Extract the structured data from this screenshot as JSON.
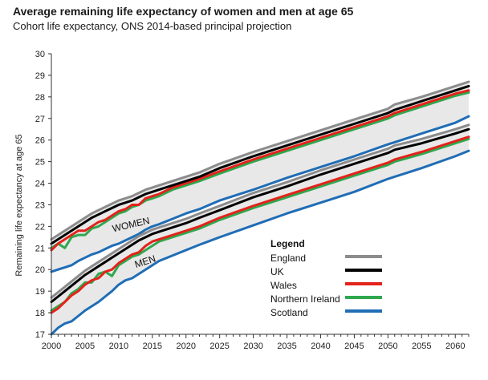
{
  "chart_data": {
    "type": "line",
    "title": "Average remaining life expectancy of women and men at age 65",
    "subtitle": "Cohort life expectancy, ONS 2014-based principal projection",
    "xlabel": "",
    "ylabel": "Remaining life expectancy at age 65",
    "xlim": [
      2000,
      2062
    ],
    "ylim": [
      17,
      30
    ],
    "xticks": [
      2000,
      2005,
      2010,
      2015,
      2020,
      2025,
      2030,
      2035,
      2040,
      2045,
      2050,
      2055,
      2060
    ],
    "yticks": [
      17,
      18,
      19,
      20,
      21,
      22,
      23,
      24,
      25,
      26,
      27,
      28,
      29,
      30
    ],
    "grid": false,
    "legend": {
      "title": "Legend",
      "placement": "center-right"
    },
    "band_labels": [
      "WOMEN",
      "MEN"
    ],
    "groups": [
      {
        "name": "WOMEN",
        "x": [
          2000,
          2001,
          2002,
          2003,
          2004,
          2005,
          2006,
          2007,
          2008,
          2009,
          2010,
          2011,
          2012,
          2013,
          2014,
          2015,
          2016,
          2018,
          2020,
          2022,
          2025,
          2030,
          2035,
          2040,
          2045,
          2050,
          2051,
          2055,
          2060,
          2062
        ],
        "series": [
          {
            "name": "England",
            "values": [
              21.4,
              21.6,
              21.8,
              22.0,
              22.2,
              22.4,
              22.6,
              22.75,
              22.9,
              23.05,
              23.2,
              23.3,
              23.4,
              23.55,
              23.7,
              23.8,
              23.9,
              24.1,
              24.3,
              24.5,
              24.9,
              25.45,
              25.95,
              26.45,
              26.95,
              27.45,
              27.65,
              28.0,
              28.5,
              28.7
            ]
          },
          {
            "name": "UK",
            "values": [
              21.2,
              21.4,
              21.6,
              21.8,
              22.0,
              22.2,
              22.4,
              22.55,
              22.7,
              22.85,
              23.0,
              23.1,
              23.2,
              23.35,
              23.5,
              23.6,
              23.7,
              23.9,
              24.1,
              24.3,
              24.7,
              25.25,
              25.75,
              26.25,
              26.75,
              27.25,
              27.4,
              27.8,
              28.3,
              28.5
            ]
          },
          {
            "name": "Wales",
            "values": [
              20.9,
              21.2,
              21.4,
              21.6,
              21.8,
              21.8,
              22.0,
              22.2,
              22.3,
              22.5,
              22.7,
              22.8,
              23.0,
              23.0,
              23.3,
              23.4,
              23.5,
              23.8,
              24.0,
              24.2,
              24.55,
              25.1,
              25.6,
              26.1,
              26.6,
              27.1,
              27.25,
              27.65,
              28.15,
              28.3
            ]
          },
          {
            "name": "Northern Ireland",
            "values": [
              21.0,
              21.2,
              21.0,
              21.5,
              21.6,
              21.6,
              21.9,
              22.0,
              22.2,
              22.4,
              22.6,
              22.7,
              22.9,
              23.0,
              23.2,
              23.3,
              23.4,
              23.7,
              23.9,
              24.1,
              24.45,
              25.0,
              25.5,
              26.0,
              26.5,
              27.0,
              27.15,
              27.55,
              28.05,
              28.2
            ]
          },
          {
            "name": "Scotland",
            "values": [
              19.9,
              20.0,
              20.1,
              20.2,
              20.4,
              20.55,
              20.7,
              20.8,
              20.95,
              21.1,
              21.2,
              21.35,
              21.5,
              21.65,
              21.85,
              22.0,
              22.1,
              22.35,
              22.6,
              22.8,
              23.2,
              23.7,
              24.25,
              24.75,
              25.25,
              25.8,
              25.9,
              26.3,
              26.8,
              27.1
            ]
          }
        ]
      },
      {
        "name": "MEN",
        "x": [
          2000,
          2001,
          2002,
          2003,
          2004,
          2005,
          2006,
          2007,
          2008,
          2009,
          2010,
          2011,
          2012,
          2013,
          2014,
          2015,
          2016,
          2018,
          2020,
          2022,
          2025,
          2030,
          2035,
          2040,
          2045,
          2050,
          2051,
          2055,
          2060,
          2062
        ],
        "series": [
          {
            "name": "England",
            "values": [
              18.7,
              18.95,
              19.2,
              19.45,
              19.7,
              19.95,
              20.15,
              20.35,
              20.55,
              20.75,
              20.95,
              21.15,
              21.35,
              21.55,
              21.7,
              21.85,
              21.95,
              22.15,
              22.35,
              22.6,
              22.95,
              23.55,
              24.05,
              24.6,
              25.1,
              25.6,
              25.75,
              26.05,
              26.5,
              26.7
            ]
          },
          {
            "name": "UK",
            "values": [
              18.5,
              18.75,
              19.0,
              19.25,
              19.5,
              19.75,
              19.95,
              20.15,
              20.35,
              20.55,
              20.75,
              20.95,
              21.15,
              21.35,
              21.5,
              21.65,
              21.75,
              21.95,
              22.15,
              22.4,
              22.75,
              23.35,
              23.85,
              24.4,
              24.9,
              25.4,
              25.55,
              25.85,
              26.3,
              26.5
            ]
          },
          {
            "name": "Wales",
            "values": [
              18.0,
              18.2,
              18.5,
              18.8,
              19.0,
              19.3,
              19.5,
              19.6,
              19.9,
              20.0,
              20.3,
              20.5,
              20.7,
              20.8,
              21.1,
              21.3,
              21.4,
              21.6,
              21.8,
              22.0,
              22.4,
              22.95,
              23.45,
              23.95,
              24.45,
              24.95,
              25.1,
              25.45,
              25.95,
              26.15
            ]
          },
          {
            "name": "Northern Ireland",
            "values": [
              18.1,
              18.3,
              18.5,
              18.9,
              19.1,
              19.4,
              19.4,
              19.8,
              19.9,
              19.7,
              20.2,
              20.4,
              20.6,
              20.7,
              20.9,
              21.1,
              21.3,
              21.5,
              21.7,
              21.9,
              22.3,
              22.85,
              23.35,
              23.85,
              24.35,
              24.85,
              25.0,
              25.35,
              25.85,
              26.05
            ]
          },
          {
            "name": "Scotland",
            "values": [
              17.0,
              17.3,
              17.5,
              17.6,
              17.85,
              18.1,
              18.3,
              18.5,
              18.75,
              19.0,
              19.3,
              19.5,
              19.6,
              19.8,
              20.0,
              20.2,
              20.4,
              20.65,
              20.9,
              21.15,
              21.5,
              22.05,
              22.6,
              23.1,
              23.6,
              24.2,
              24.3,
              24.7,
              25.25,
              25.5
            ]
          }
        ]
      }
    ],
    "colors": {
      "England": "#8c8c8c",
      "UK": "#000000",
      "Wales": "#e3231b",
      "Northern Ireland": "#2fa84f",
      "Scotland": "#1f6db5",
      "band": "#e8e8e8"
    }
  }
}
